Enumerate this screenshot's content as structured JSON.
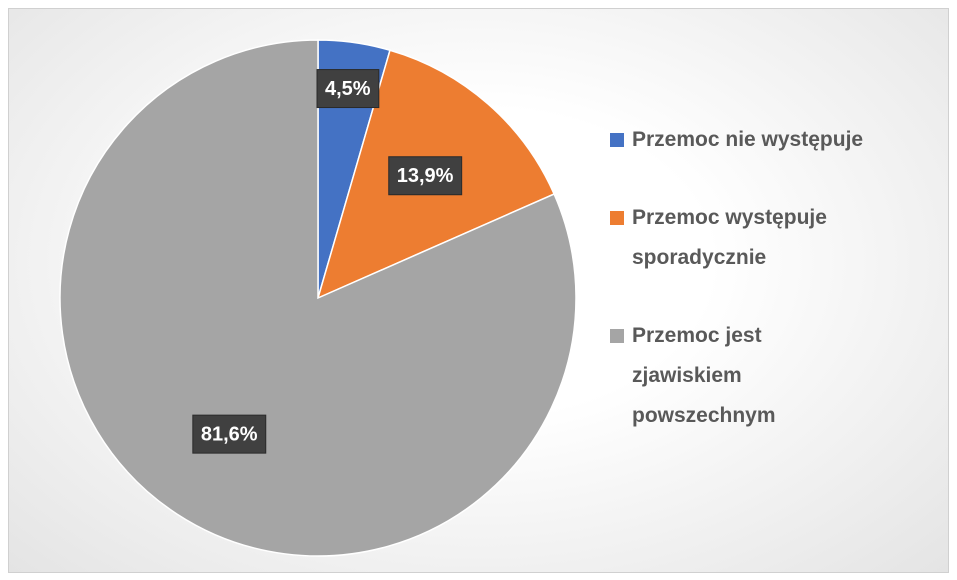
{
  "chart_data": {
    "type": "pie",
    "categories": [
      "Przemoc nie występuje",
      "Przemoc występuje sporadycznie",
      "Przemoc jest zjawiskiem powszechnym"
    ],
    "values": [
      4.5,
      13.9,
      81.6
    ],
    "value_labels": [
      "4,5%",
      "13,9%",
      "81,6%"
    ],
    "colors": [
      "#4472c4",
      "#ed7d31",
      "#a5a5a5"
    ],
    "legend": "right"
  }
}
